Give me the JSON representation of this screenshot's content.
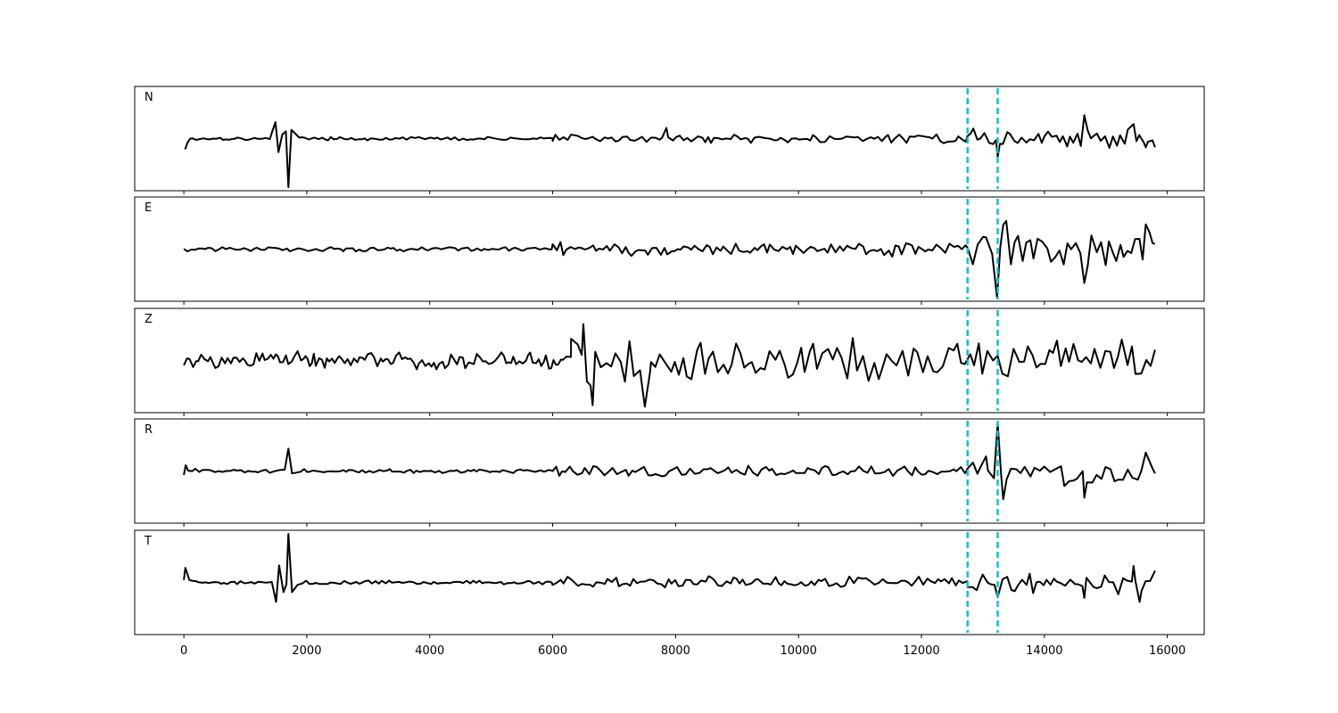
{
  "chart_data": {
    "type": "line",
    "title": "",
    "xlabel": "",
    "ylabel": "",
    "xlim": [
      -800,
      16600
    ],
    "ylim": [
      -1,
      1
    ],
    "grid": false,
    "xticks": [
      0,
      2000,
      4000,
      6000,
      8000,
      10000,
      12000,
      14000,
      16000
    ],
    "xtick_labels": [
      "0",
      "2000",
      "4000",
      "6000",
      "8000",
      "10000",
      "12000",
      "14000",
      "16000"
    ],
    "line_color": "#000000",
    "marker_color": "#17becf",
    "markers": [
      12750,
      13240
    ],
    "panels": [
      {
        "label": "N",
        "x_end": 15800,
        "segments": [
          {
            "start": 0,
            "end": 6000,
            "amp": 0.04,
            "step": 55
          },
          {
            "start": 6000,
            "end": 12750,
            "amp": 0.1,
            "step": 60
          },
          {
            "start": 12750,
            "end": 15800,
            "amp": 0.22,
            "step": 60
          }
        ],
        "features": [
          {
            "x": 0,
            "y": 0.0
          },
          {
            "x": 20,
            "y": -0.22
          },
          {
            "x": 60,
            "y": -0.08
          },
          {
            "x": 1430,
            "y": 0.12
          },
          {
            "x": 1490,
            "y": 0.34
          },
          {
            "x": 1540,
            "y": -0.28
          },
          {
            "x": 1600,
            "y": 0.08
          },
          {
            "x": 1660,
            "y": 0.15
          },
          {
            "x": 1700,
            "y": -1.0
          },
          {
            "x": 1750,
            "y": 0.18
          },
          {
            "x": 1800,
            "y": 0.12
          },
          {
            "x": 7850,
            "y": 0.22
          },
          {
            "x": 13240,
            "y": -0.38
          },
          {
            "x": 14650,
            "y": 0.48
          },
          {
            "x": 15450,
            "y": 0.3
          },
          {
            "x": 15650,
            "y": -0.18
          },
          {
            "x": 15800,
            "y": -0.18
          }
        ]
      },
      {
        "label": "E",
        "x_end": 15800,
        "segments": [
          {
            "start": 0,
            "end": 6000,
            "amp": 0.05,
            "step": 55
          },
          {
            "start": 6000,
            "end": 12750,
            "amp": 0.16,
            "step": 60
          },
          {
            "start": 12750,
            "end": 15800,
            "amp": 0.45,
            "step": 70
          }
        ],
        "features": [
          {
            "x": 13050,
            "y": 0.24
          },
          {
            "x": 13150,
            "y": -0.1
          },
          {
            "x": 13230,
            "y": -1.0
          },
          {
            "x": 13330,
            "y": 0.5
          },
          {
            "x": 13380,
            "y": 0.58
          },
          {
            "x": 14650,
            "y": -0.7
          },
          {
            "x": 15650,
            "y": 0.51
          },
          {
            "x": 15800,
            "y": 0.11
          }
        ]
      },
      {
        "label": "Z",
        "x_end": 15800,
        "segments": [
          {
            "start": 0,
            "end": 6300,
            "amp": 0.2,
            "step": 45
          },
          {
            "start": 6300,
            "end": 7600,
            "amp": 0.75,
            "step": 85
          },
          {
            "start": 7600,
            "end": 15800,
            "amp": 0.48,
            "step": 75
          }
        ],
        "features": [
          {
            "x": 6500,
            "y": 0.75
          },
          {
            "x": 6650,
            "y": -0.92
          },
          {
            "x": 7500,
            "y": -0.95
          },
          {
            "x": 15800,
            "y": 0.22
          }
        ]
      },
      {
        "label": "R",
        "x_end": 15800,
        "segments": [
          {
            "start": 0,
            "end": 6000,
            "amp": 0.05,
            "step": 55
          },
          {
            "start": 6000,
            "end": 12750,
            "amp": 0.13,
            "step": 60
          },
          {
            "start": 12750,
            "end": 15800,
            "amp": 0.38,
            "step": 75
          }
        ],
        "features": [
          {
            "x": 0,
            "y": -0.08
          },
          {
            "x": 30,
            "y": 0.12
          },
          {
            "x": 1700,
            "y": 0.46
          },
          {
            "x": 1760,
            "y": -0.05
          },
          {
            "x": 13050,
            "y": 0.3
          },
          {
            "x": 13180,
            "y": -0.15
          },
          {
            "x": 13240,
            "y": 1.0
          },
          {
            "x": 13330,
            "y": -0.58
          },
          {
            "x": 14650,
            "y": -0.55
          },
          {
            "x": 15650,
            "y": 0.38
          },
          {
            "x": 15800,
            "y": -0.05
          }
        ]
      },
      {
        "label": "T",
        "x_end": 15800,
        "segments": [
          {
            "start": 0,
            "end": 6000,
            "amp": 0.05,
            "step": 55
          },
          {
            "start": 6000,
            "end": 12750,
            "amp": 0.13,
            "step": 60
          },
          {
            "start": 12750,
            "end": 15800,
            "amp": 0.25,
            "step": 65
          }
        ],
        "features": [
          {
            "x": 0,
            "y": 0.05
          },
          {
            "x": 25,
            "y": 0.3
          },
          {
            "x": 90,
            "y": 0.05
          },
          {
            "x": 1380,
            "y": 0.0
          },
          {
            "x": 1500,
            "y": -0.4
          },
          {
            "x": 1550,
            "y": 0.35
          },
          {
            "x": 1620,
            "y": -0.2
          },
          {
            "x": 1700,
            "y": 1.0
          },
          {
            "x": 1760,
            "y": -0.2
          },
          {
            "x": 1850,
            "y": -0.05
          },
          {
            "x": 13240,
            "y": -0.3
          },
          {
            "x": 14650,
            "y": -0.32
          },
          {
            "x": 15450,
            "y": 0.34
          },
          {
            "x": 15550,
            "y": -0.4
          },
          {
            "x": 15800,
            "y": 0.24
          }
        ]
      }
    ]
  }
}
